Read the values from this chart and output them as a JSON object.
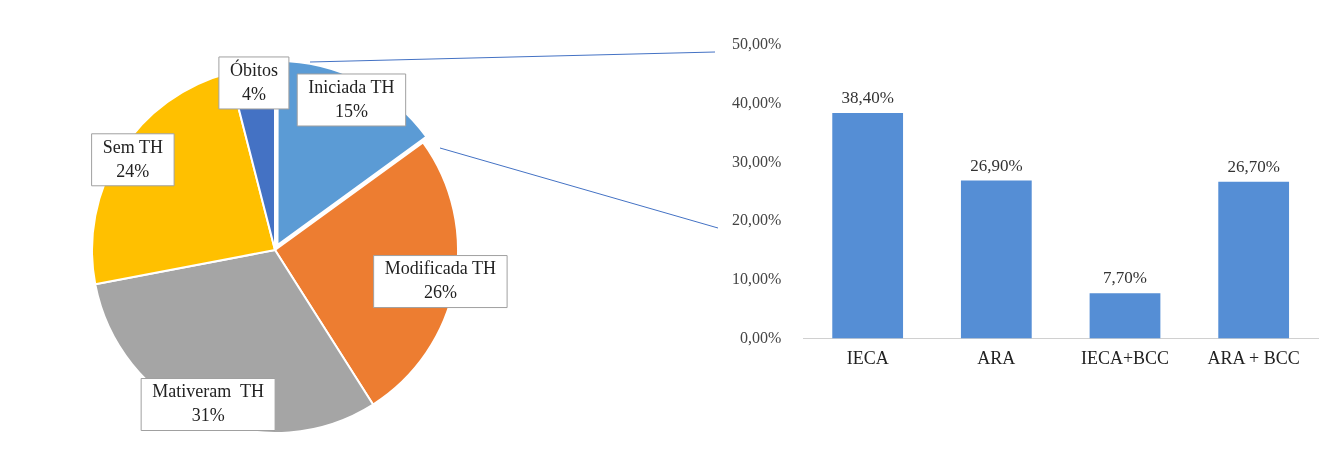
{
  "chart_data": [
    {
      "type": "pie",
      "categories": [
        "Iniciada TH",
        "Modificada TH",
        "Mativeram  TH",
        "Sem TH",
        "Óbitos"
      ],
      "values": [
        15,
        26,
        31,
        24,
        4
      ],
      "colors": [
        "#5b9bd5",
        "#ed7d31",
        "#a5a5a5",
        "#ffc000",
        "#4472c4"
      ],
      "value_labels": [
        "15%",
        "26%",
        "31%",
        "24%",
        "4%"
      ],
      "legend": false
    },
    {
      "type": "bar",
      "categories": [
        "IECA",
        "ARA",
        "IECA+BCC",
        "ARA + BCC"
      ],
      "values": [
        38.4,
        26.9,
        7.7,
        26.7
      ],
      "color": "#558ed5",
      "value_labels": [
        "38,40%",
        "26,90%",
        "7,70%",
        "26,70%"
      ],
      "ylim": [
        0,
        50
      ],
      "yticks": [
        {
          "value": 0,
          "label": "0,00%"
        },
        {
          "value": 10,
          "label": "10,00%"
        },
        {
          "value": 20,
          "label": "20,00%"
        },
        {
          "value": 30,
          "label": "30,00%"
        },
        {
          "value": 40,
          "label": "40,00%"
        },
        {
          "value": 50,
          "label": "50,00%"
        }
      ],
      "grid": false,
      "legend": false
    }
  ]
}
